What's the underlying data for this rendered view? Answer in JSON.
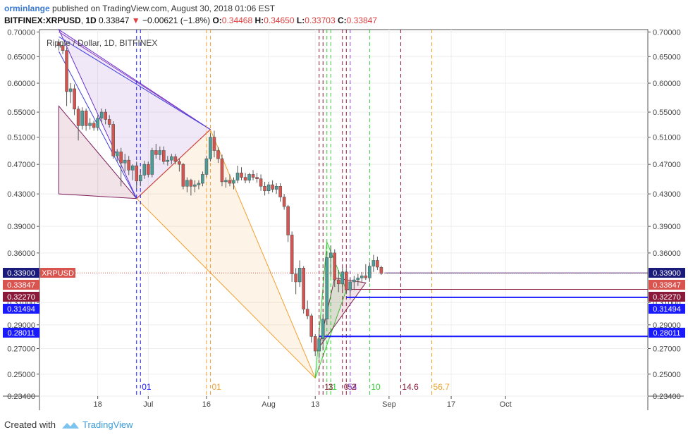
{
  "header": {
    "user": "orminlange",
    "published": "published on TradingView.com, August 30, 2018 01:06 EST",
    "symbol": "BITFINEX:XRPUSD",
    "interval": "1D",
    "last": "0.33847",
    "change": "−0.00621 (−1.8%)",
    "o_label": "O:",
    "o": "0.34468",
    "h_label": "H:",
    "h": "0.34650",
    "l_label": "L:",
    "l": "0.33703",
    "c_label": "C:",
    "c": "0.33847"
  },
  "footer": {
    "created_with": "Created with",
    "brand": "TradingView"
  },
  "colors": {
    "up": "#4a9e9a",
    "down": "#d9534f",
    "blue": "#1a1aff",
    "orange": "#f0a030",
    "purple": "#8a40c0",
    "green": "#33cc33",
    "maroon": "#8b1a3a"
  },
  "chart_data": {
    "type": "candlestick",
    "title": "Ripple / Dollar, 1D, BITFINEX",
    "ylim": [
      0.234,
      0.705
    ],
    "scale": "log",
    "y_ticks": [
      "0.70000",
      "0.65000",
      "0.60000",
      "0.55000",
      "0.51000",
      "0.47000",
      "0.43000",
      "0.39000",
      "0.36000",
      "0.31000",
      "0.29000",
      "0.27000",
      "0.25000",
      "0.23400"
    ],
    "x_ticks": [
      {
        "label": "18",
        "date": "2018-06-18"
      },
      {
        "label": "Jul",
        "date": "2018-07-01"
      },
      {
        "label": "16",
        "date": "2018-07-16"
      },
      {
        "label": "Aug",
        "date": "2018-08-01"
      },
      {
        "label": "13",
        "date": "2018-08-13"
      },
      {
        "label": "Sep",
        "date": "2018-09-01"
      },
      {
        "label": "17",
        "date": "2018-09-17"
      },
      {
        "label": "Oct",
        "date": "2018-10-01"
      }
    ],
    "price_labels": [
      {
        "text": "0.33900",
        "value": 0.339,
        "color": "#1a1a7a",
        "tag": "XRPUSD"
      },
      {
        "text": "0.33847",
        "value": 0.33847,
        "color": "#d9534f"
      },
      {
        "text": "0.32270",
        "value": 0.3227,
        "color": "#8b1a3a"
      },
      {
        "text": "0.31494",
        "value": 0.31494,
        "color": "#1a1aff"
      },
      {
        "text": "0.28011",
        "value": 0.28011,
        "color": "#1a1aff"
      }
    ],
    "time_labels": [
      {
        "text": "01",
        "date": "2018-06-29",
        "color": "#1a1aff"
      },
      {
        "text": "01",
        "date": "2018-07-17",
        "color": "#f0a030"
      },
      {
        "text": "1",
        "date": "2018-08-15",
        "color": "#8b1a3a"
      },
      {
        "text": "1",
        "date": "2018-08-16",
        "color": "#33cc33"
      },
      {
        "text": "3",
        "date": "2018-08-16",
        "color": "#8b1a3a"
      },
      {
        "text": "1",
        "date": "2018-08-17",
        "color": "#33cc33"
      },
      {
        "text": "0",
        "date": "2018-08-20",
        "color": "#8b1a3a"
      },
      {
        "text": "54",
        "date": "2018-08-21",
        "color": "#8a40c0"
      },
      {
        "text": "2",
        "date": "2018-08-22",
        "color": "#8b1a3a"
      },
      {
        "text": "10",
        "date": "2018-08-27",
        "color": "#33cc33"
      },
      {
        "text": "14.6",
        "date": "2018-09-04",
        "color": "#8b1a3a"
      },
      {
        "text": "56.7",
        "date": "2018-09-12",
        "color": "#f0a030"
      }
    ],
    "candles": [
      {
        "d": "2018-06-08",
        "o": 0.678,
        "h": 0.685,
        "l": 0.662,
        "c": 0.672
      },
      {
        "d": "2018-06-09",
        "o": 0.672,
        "h": 0.68,
        "l": 0.655,
        "c": 0.662
      },
      {
        "d": "2018-06-10",
        "o": 0.662,
        "h": 0.668,
        "l": 0.56,
        "c": 0.585
      },
      {
        "d": "2018-06-11",
        "o": 0.585,
        "h": 0.6,
        "l": 0.565,
        "c": 0.59
      },
      {
        "d": "2018-06-12",
        "o": 0.59,
        "h": 0.598,
        "l": 0.545,
        "c": 0.555
      },
      {
        "d": "2018-06-13",
        "o": 0.555,
        "h": 0.56,
        "l": 0.505,
        "c": 0.528
      },
      {
        "d": "2018-06-14",
        "o": 0.528,
        "h": 0.558,
        "l": 0.522,
        "c": 0.552
      },
      {
        "d": "2018-06-15",
        "o": 0.552,
        "h": 0.556,
        "l": 0.52,
        "c": 0.528
      },
      {
        "d": "2018-06-16",
        "o": 0.528,
        "h": 0.54,
        "l": 0.522,
        "c": 0.532
      },
      {
        "d": "2018-06-17",
        "o": 0.532,
        "h": 0.536,
        "l": 0.52,
        "c": 0.525
      },
      {
        "d": "2018-06-18",
        "o": 0.525,
        "h": 0.545,
        "l": 0.52,
        "c": 0.54
      },
      {
        "d": "2018-06-19",
        "o": 0.54,
        "h": 0.556,
        "l": 0.532,
        "c": 0.55
      },
      {
        "d": "2018-06-20",
        "o": 0.55,
        "h": 0.555,
        "l": 0.53,
        "c": 0.538
      },
      {
        "d": "2018-06-21",
        "o": 0.538,
        "h": 0.545,
        "l": 0.525,
        "c": 0.53
      },
      {
        "d": "2018-06-22",
        "o": 0.53,
        "h": 0.535,
        "l": 0.478,
        "c": 0.482
      },
      {
        "d": "2018-06-23",
        "o": 0.482,
        "h": 0.492,
        "l": 0.474,
        "c": 0.488
      },
      {
        "d": "2018-06-24",
        "o": 0.488,
        "h": 0.494,
        "l": 0.44,
        "c": 0.472
      },
      {
        "d": "2018-06-25",
        "o": 0.472,
        "h": 0.485,
        "l": 0.46,
        "c": 0.476
      },
      {
        "d": "2018-06-26",
        "o": 0.476,
        "h": 0.482,
        "l": 0.455,
        "c": 0.462
      },
      {
        "d": "2018-06-27",
        "o": 0.462,
        "h": 0.47,
        "l": 0.448,
        "c": 0.468
      },
      {
        "d": "2018-06-28",
        "o": 0.468,
        "h": 0.474,
        "l": 0.436,
        "c": 0.447
      },
      {
        "d": "2018-06-29",
        "o": 0.447,
        "h": 0.462,
        "l": 0.44,
        "c": 0.455
      },
      {
        "d": "2018-06-30",
        "o": 0.455,
        "h": 0.475,
        "l": 0.45,
        "c": 0.47
      },
      {
        "d": "2018-07-01",
        "o": 0.47,
        "h": 0.474,
        "l": 0.452,
        "c": 0.456
      },
      {
        "d": "2018-07-02",
        "o": 0.456,
        "h": 0.494,
        "l": 0.452,
        "c": 0.49
      },
      {
        "d": "2018-07-03",
        "o": 0.49,
        "h": 0.5,
        "l": 0.478,
        "c": 0.484
      },
      {
        "d": "2018-07-04",
        "o": 0.484,
        "h": 0.496,
        "l": 0.476,
        "c": 0.49
      },
      {
        "d": "2018-07-05",
        "o": 0.49,
        "h": 0.496,
        "l": 0.47,
        "c": 0.474
      },
      {
        "d": "2018-07-06",
        "o": 0.474,
        "h": 0.482,
        "l": 0.468,
        "c": 0.476
      },
      {
        "d": "2018-07-07",
        "o": 0.476,
        "h": 0.485,
        "l": 0.47,
        "c": 0.481
      },
      {
        "d": "2018-07-08",
        "o": 0.481,
        "h": 0.485,
        "l": 0.47,
        "c": 0.474
      },
      {
        "d": "2018-07-09",
        "o": 0.474,
        "h": 0.478,
        "l": 0.46,
        "c": 0.47
      },
      {
        "d": "2018-07-10",
        "o": 0.47,
        "h": 0.472,
        "l": 0.436,
        "c": 0.44
      },
      {
        "d": "2018-07-11",
        "o": 0.44,
        "h": 0.452,
        "l": 0.432,
        "c": 0.448
      },
      {
        "d": "2018-07-12",
        "o": 0.448,
        "h": 0.45,
        "l": 0.428,
        "c": 0.44
      },
      {
        "d": "2018-07-13",
        "o": 0.44,
        "h": 0.448,
        "l": 0.432,
        "c": 0.442
      },
      {
        "d": "2018-07-14",
        "o": 0.442,
        "h": 0.448,
        "l": 0.436,
        "c": 0.444
      },
      {
        "d": "2018-07-15",
        "o": 0.444,
        "h": 0.46,
        "l": 0.44,
        "c": 0.456
      },
      {
        "d": "2018-07-16",
        "o": 0.456,
        "h": 0.482,
        "l": 0.452,
        "c": 0.478
      },
      {
        "d": "2018-07-17",
        "o": 0.478,
        "h": 0.516,
        "l": 0.474,
        "c": 0.51
      },
      {
        "d": "2018-07-18",
        "o": 0.51,
        "h": 0.52,
        "l": 0.48,
        "c": 0.49
      },
      {
        "d": "2018-07-19",
        "o": 0.49,
        "h": 0.495,
        "l": 0.472,
        "c": 0.478
      },
      {
        "d": "2018-07-20",
        "o": 0.478,
        "h": 0.484,
        "l": 0.44,
        "c": 0.446
      },
      {
        "d": "2018-07-21",
        "o": 0.446,
        "h": 0.452,
        "l": 0.438,
        "c": 0.448
      },
      {
        "d": "2018-07-22",
        "o": 0.448,
        "h": 0.456,
        "l": 0.44,
        "c": 0.444
      },
      {
        "d": "2018-07-23",
        "o": 0.444,
        "h": 0.452,
        "l": 0.436,
        "c": 0.448
      },
      {
        "d": "2018-07-24",
        "o": 0.448,
        "h": 0.468,
        "l": 0.444,
        "c": 0.458
      },
      {
        "d": "2018-07-25",
        "o": 0.458,
        "h": 0.466,
        "l": 0.448,
        "c": 0.452
      },
      {
        "d": "2018-07-26",
        "o": 0.452,
        "h": 0.458,
        "l": 0.444,
        "c": 0.448
      },
      {
        "d": "2018-07-27",
        "o": 0.448,
        "h": 0.458,
        "l": 0.444,
        "c": 0.456
      },
      {
        "d": "2018-07-28",
        "o": 0.456,
        "h": 0.462,
        "l": 0.448,
        "c": 0.452
      },
      {
        "d": "2018-07-29",
        "o": 0.452,
        "h": 0.458,
        "l": 0.445,
        "c": 0.45
      },
      {
        "d": "2018-07-30",
        "o": 0.45,
        "h": 0.456,
        "l": 0.434,
        "c": 0.44
      },
      {
        "d": "2018-07-31",
        "o": 0.44,
        "h": 0.446,
        "l": 0.428,
        "c": 0.434
      },
      {
        "d": "2018-08-01",
        "o": 0.434,
        "h": 0.446,
        "l": 0.43,
        "c": 0.442
      },
      {
        "d": "2018-08-02",
        "o": 0.442,
        "h": 0.448,
        "l": 0.432,
        "c": 0.436
      },
      {
        "d": "2018-08-03",
        "o": 0.436,
        "h": 0.444,
        "l": 0.43,
        "c": 0.44
      },
      {
        "d": "2018-08-04",
        "o": 0.44,
        "h": 0.444,
        "l": 0.42,
        "c": 0.426
      },
      {
        "d": "2018-08-05",
        "o": 0.426,
        "h": 0.43,
        "l": 0.41,
        "c": 0.414
      },
      {
        "d": "2018-08-06",
        "o": 0.414,
        "h": 0.416,
        "l": 0.372,
        "c": 0.38
      },
      {
        "d": "2018-08-07",
        "o": 0.38,
        "h": 0.384,
        "l": 0.33,
        "c": 0.338
      },
      {
        "d": "2018-08-08",
        "o": 0.338,
        "h": 0.344,
        "l": 0.318,
        "c": 0.33
      },
      {
        "d": "2018-08-09",
        "o": 0.33,
        "h": 0.352,
        "l": 0.325,
        "c": 0.344
      },
      {
        "d": "2018-08-10",
        "o": 0.344,
        "h": 0.346,
        "l": 0.3,
        "c": 0.304
      },
      {
        "d": "2018-08-11",
        "o": 0.304,
        "h": 0.312,
        "l": 0.295,
        "c": 0.298
      },
      {
        "d": "2018-08-12",
        "o": 0.298,
        "h": 0.3,
        "l": 0.275,
        "c": 0.28
      },
      {
        "d": "2018-08-13",
        "o": 0.28,
        "h": 0.282,
        "l": 0.264,
        "c": 0.268
      },
      {
        "d": "2018-08-14",
        "o": 0.268,
        "h": 0.285,
        "l": 0.262,
        "c": 0.278
      },
      {
        "d": "2018-08-15",
        "o": 0.278,
        "h": 0.3,
        "l": 0.27,
        "c": 0.295
      },
      {
        "d": "2018-08-16",
        "o": 0.295,
        "h": 0.362,
        "l": 0.29,
        "c": 0.355
      },
      {
        "d": "2018-08-17",
        "o": 0.355,
        "h": 0.368,
        "l": 0.335,
        "c": 0.36
      },
      {
        "d": "2018-08-18",
        "o": 0.36,
        "h": 0.364,
        "l": 0.325,
        "c": 0.332
      },
      {
        "d": "2018-08-19",
        "o": 0.332,
        "h": 0.342,
        "l": 0.32,
        "c": 0.328
      },
      {
        "d": "2018-08-20",
        "o": 0.328,
        "h": 0.345,
        "l": 0.322,
        "c": 0.34
      },
      {
        "d": "2018-08-21",
        "o": 0.34,
        "h": 0.344,
        "l": 0.318,
        "c": 0.322
      },
      {
        "d": "2018-08-22",
        "o": 0.322,
        "h": 0.334,
        "l": 0.316,
        "c": 0.33
      },
      {
        "d": "2018-08-23",
        "o": 0.33,
        "h": 0.336,
        "l": 0.322,
        "c": 0.332
      },
      {
        "d": "2018-08-24",
        "o": 0.332,
        "h": 0.338,
        "l": 0.326,
        "c": 0.334
      },
      {
        "d": "2018-08-25",
        "o": 0.334,
        "h": 0.34,
        "l": 0.33,
        "c": 0.336
      },
      {
        "d": "2018-08-26",
        "o": 0.336,
        "h": 0.348,
        "l": 0.332,
        "c": 0.334
      },
      {
        "d": "2018-08-27",
        "o": 0.334,
        "h": 0.35,
        "l": 0.33,
        "c": 0.346
      },
      {
        "d": "2018-08-28",
        "o": 0.346,
        "h": 0.358,
        "l": 0.34,
        "c": 0.352
      },
      {
        "d": "2018-08-29",
        "o": 0.352,
        "h": 0.356,
        "l": 0.342,
        "c": 0.345
      },
      {
        "d": "2018-08-30",
        "o": 0.34468,
        "h": 0.3465,
        "l": 0.33703,
        "c": 0.33847
      }
    ],
    "drawings": {
      "ranges": [
        {
          "d1": "2018-06-28",
          "d2": "2018-06-29",
          "color": "#1a1aff"
        },
        {
          "d1": "2018-07-16",
          "d2": "2018-07-17",
          "color": "#f0a030"
        },
        {
          "d1": "2018-08-14",
          "d2": "2018-08-15",
          "color": "#8b1a3a"
        },
        {
          "d1": "2018-08-16",
          "d2": "2018-08-17",
          "color": "#33cc33"
        },
        {
          "d1": "2018-08-20",
          "d2": "2018-08-21",
          "color": "#8b1a3a"
        },
        {
          "d1": "2018-08-22",
          "color": "#8a40c0"
        },
        {
          "d1": "2018-08-27",
          "color": "#33cc33"
        },
        {
          "d1": "2018-09-04",
          "color": "#8b1a3a"
        },
        {
          "d1": "2018-09-12",
          "color": "#f0a030"
        }
      ],
      "polys": [
        {
          "pts": [
            [
              "2018-06-08",
              0.56
            ],
            [
              "2018-06-28",
              0.424
            ],
            [
              "2018-06-08",
              0.43
            ]
          ],
          "fill": "#8b1a3a",
          "stroke": "#7a1a5a"
        },
        {
          "pts": [
            [
              "2018-06-08",
              0.705
            ],
            [
              "2018-06-28",
              0.424
            ],
            [
              "2018-07-17",
              0.522
            ]
          ],
          "fill": "#8a40c0",
          "stroke": "#6a30d0"
        },
        {
          "pts": [
            [
              "2018-06-28",
              0.424
            ],
            [
              "2018-07-17",
              0.522
            ],
            [
              "2018-08-13",
              0.247
            ]
          ],
          "fill": "#f0a030",
          "stroke": "#f0a030"
        },
        {
          "pts": [
            [
              "2018-08-13",
              0.247
            ],
            [
              "2018-08-16",
              0.372
            ],
            [
              "2018-08-21",
              0.322
            ]
          ],
          "fill": "#33cc33",
          "stroke": "#33cc33"
        },
        {
          "pts": [
            [
              "2018-08-14",
              0.271
            ],
            [
              "2018-08-18",
              0.334
            ],
            [
              "2018-08-26",
              0.329
            ]
          ],
          "fill": "#8b1a3a",
          "stroke": "#7a2a4a"
        }
      ],
      "lines": [
        {
          "p1": [
            "2018-06-08",
            0.66
          ],
          "p2": [
            "2018-06-28",
            0.424
          ],
          "color": "#4040e0"
        },
        {
          "p1": [
            "2018-06-08",
            0.7
          ],
          "p2": [
            "2018-07-17",
            0.522
          ],
          "color": "#8a40c0"
        },
        {
          "p1": [
            "2018-06-08",
            0.69
          ],
          "p2": [
            "2018-07-17",
            0.522
          ],
          "color": "#4040e0"
        },
        {
          "p1": [
            "2018-06-28",
            0.424
          ],
          "p2": [
            "2018-07-17",
            0.522
          ],
          "color": "#d04040"
        }
      ],
      "hlines": [
        {
          "y": 0.3227,
          "d1": "2018-08-21",
          "color": "#8b1a3a",
          "w": 1
        },
        {
          "y": 0.31494,
          "d1": "2018-08-21",
          "color": "#1a1aff",
          "w": 2
        },
        {
          "y": 0.28011,
          "d1": "2018-08-14",
          "color": "#1a1aff",
          "w": 2
        },
        {
          "y": 0.339,
          "d1": "2018-08-31",
          "color": "#1a1a7a",
          "w": 1
        }
      ]
    }
  }
}
